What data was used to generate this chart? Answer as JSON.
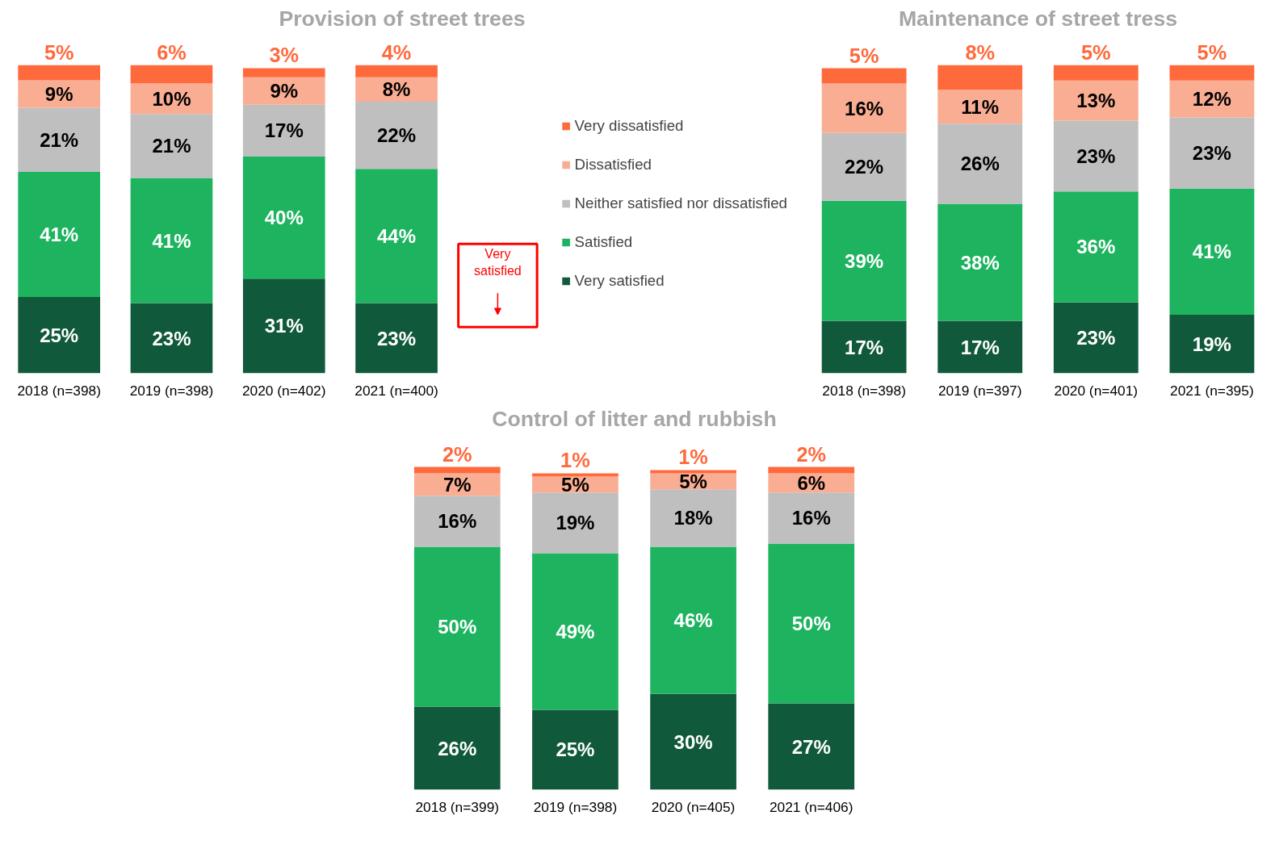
{
  "chart_data": [
    {
      "type": "bar",
      "title": "Provision of street trees",
      "stacked": true,
      "data_labels": true,
      "tick_labels": "x",
      "grid": false,
      "legend": "right",
      "categories": [
        "2018 (n=398)",
        "2019 (n=398)",
        "2020 (n=402)",
        "2021 (n=400)"
      ],
      "series": [
        {
          "name": "Very satisfied",
          "color": "#10593a",
          "values": [
            25,
            23,
            31,
            23
          ],
          "value_labels": [
            "25%",
            "23%",
            "31%",
            "23%"
          ]
        },
        {
          "name": "Satisfied",
          "color": "#1db35f",
          "values": [
            41,
            41,
            40,
            44
          ],
          "value_labels": [
            "41%",
            "41%",
            "40%",
            "44%"
          ]
        },
        {
          "name": "Neither satisfied nor dissatisfied",
          "color": "#bfbfbf",
          "values": [
            21,
            21,
            17,
            22
          ],
          "value_labels": [
            "21%",
            "21%",
            "17%",
            "22%"
          ]
        },
        {
          "name": "Dissatisfied",
          "color": "#f9ad93",
          "values": [
            9,
            10,
            9,
            8
          ],
          "value_labels": [
            "9%",
            "10%",
            "9%",
            "8%"
          ]
        },
        {
          "name": "Very dissatisfied",
          "color": "#ff6a3d",
          "values": [
            5,
            6,
            3,
            4
          ],
          "value_labels": [
            "5%",
            "6%",
            "3%",
            "4%"
          ]
        }
      ],
      "annotations": [
        "Very satisfied"
      ]
    },
    {
      "type": "bar",
      "title": "Maintenance of street tress",
      "stacked": true,
      "data_labels": true,
      "tick_labels": "x",
      "grid": false,
      "categories": [
        "2018 (n=398)",
        "2019 (n=397)",
        "2020 (n=401)",
        "2021 (n=395)"
      ],
      "series": [
        {
          "color": "#10593a",
          "values": [
            17,
            17,
            23,
            19
          ],
          "value_labels": [
            "17%",
            "17%",
            "23%",
            "19%"
          ]
        },
        {
          "color": "#1db35f",
          "values": [
            39,
            38,
            36,
            41
          ],
          "value_labels": [
            "39%",
            "38%",
            "36%",
            "41%"
          ]
        },
        {
          "color": "#bfbfbf",
          "values": [
            22,
            26,
            23,
            23
          ],
          "value_labels": [
            "22%",
            "26%",
            "23%",
            "23%"
          ]
        },
        {
          "color": "#f9ad93",
          "values": [
            16,
            11,
            13,
            12
          ],
          "value_labels": [
            "16%",
            "11%",
            "13%",
            "12%"
          ]
        },
        {
          "color": "#ff6a3d",
          "values": [
            5,
            8,
            5,
            5
          ],
          "value_labels": [
            "5%",
            "8%",
            "5%",
            "5%"
          ]
        }
      ]
    },
    {
      "type": "bar",
      "title": "Control of litter and rubbish",
      "stacked": true,
      "data_labels": true,
      "tick_labels": "x",
      "grid": false,
      "categories": [
        "2018 (n=399)",
        "2019 (n=398)",
        "2020 (n=405)",
        "2021 (n=406)"
      ],
      "series": [
        {
          "color": "#10593a",
          "values": [
            26,
            25,
            30,
            27
          ],
          "value_labels": [
            "26%",
            "25%",
            "30%",
            "27%"
          ]
        },
        {
          "color": "#1db35f",
          "values": [
            50,
            49,
            46,
            50
          ],
          "value_labels": [
            "50%",
            "49%",
            "46%",
            "50%"
          ]
        },
        {
          "color": "#bfbfbf",
          "values": [
            16,
            19,
            18,
            16
          ],
          "value_labels": [
            "16%",
            "19%",
            "18%",
            "16%"
          ]
        },
        {
          "color": "#f9ad93",
          "values": [
            7,
            5,
            5,
            6
          ],
          "value_labels": [
            "7%",
            "5%",
            "5%",
            "6%"
          ]
        },
        {
          "color": "#ff6a3d",
          "values": [
            2,
            1,
            1,
            2
          ],
          "value_labels": [
            "2%",
            "1%",
            "1%",
            "2%"
          ]
        }
      ]
    }
  ]
}
